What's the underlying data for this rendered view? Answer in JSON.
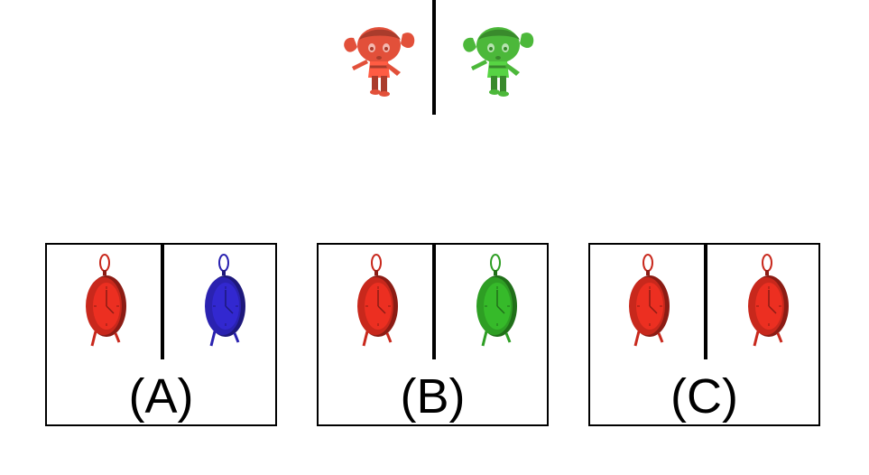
{
  "prompt": {
    "left_figure": {
      "icon": "cartoon-girl-icon",
      "color": "#e2503a"
    },
    "right_figure": {
      "icon": "cartoon-girl-icon",
      "color": "#4cb83a"
    }
  },
  "options": [
    {
      "label": "(A)",
      "left_clock_color": "#c8281c",
      "right_clock_color": "#2a22b0",
      "icon": "alarm-clock-icon"
    },
    {
      "label": "(B)",
      "left_clock_color": "#c8281c",
      "right_clock_color": "#2e9e24",
      "icon": "alarm-clock-icon"
    },
    {
      "label": "(C)",
      "left_clock_color": "#c8281c",
      "right_clock_color": "#c8281c",
      "icon": "alarm-clock-icon"
    }
  ]
}
